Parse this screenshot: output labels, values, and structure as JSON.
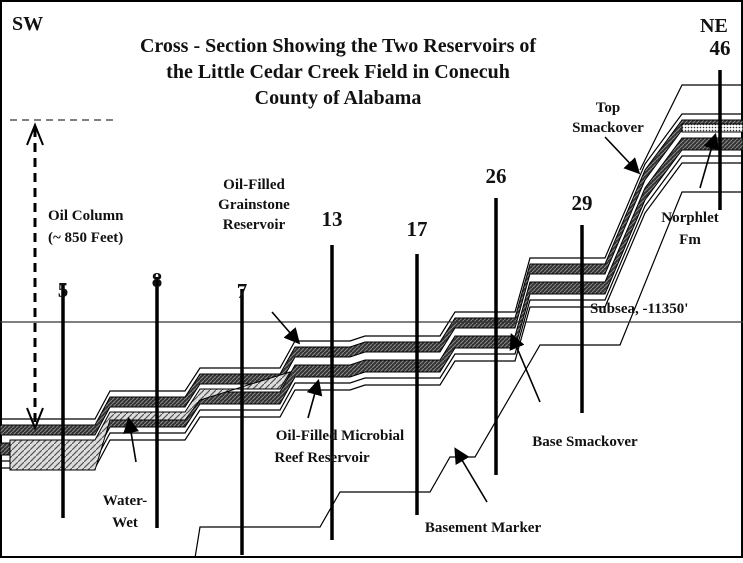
{
  "title": [
    "Cross - Section Showing the Two Reservoirs of",
    "the Little Cedar Creek Field in Conecuh",
    "County of Alabama"
  ],
  "direction": {
    "left": "SW",
    "right": "NE"
  },
  "wells": [
    {
      "label": "5"
    },
    {
      "label": "8"
    },
    {
      "label": "7"
    },
    {
      "label": "13"
    },
    {
      "label": "17"
    },
    {
      "label": "26"
    },
    {
      "label": "29"
    },
    {
      "label": "46"
    }
  ],
  "labels": {
    "oil_column": [
      "Oil Column",
      "(~ 850 Feet)"
    ],
    "grainstone": [
      "Oil-Filled",
      "Grainstone",
      "Reservoir"
    ],
    "top_smackover": [
      "Top",
      "Smackover"
    ],
    "norphlet": [
      "Norphlet",
      "Fm"
    ],
    "subsea": "Subsea, -11350'",
    "microbial": [
      "Oil-Filled Microbial",
      "Reef Reservoir"
    ],
    "base_smackover": "Base Smackover",
    "water_wet": [
      "Water-",
      "Wet"
    ],
    "basement": "Basement Marker"
  }
}
